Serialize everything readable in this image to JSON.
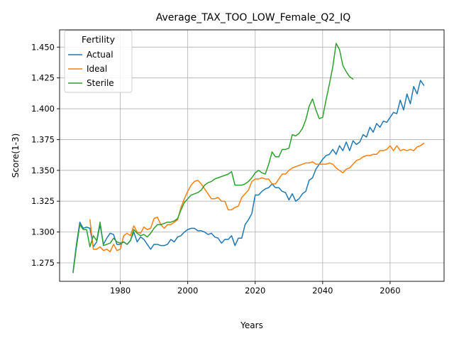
{
  "chart_data": {
    "type": "line",
    "title": "Average_TAX_TOO_LOW_Female_Q2_IQ",
    "xlabel": "Years",
    "ylabel": "Score(1-3)",
    "xlim": [
      1962,
      2076
    ],
    "ylim": [
      1.26,
      1.464
    ],
    "xticks": [
      1980,
      2000,
      2020,
      2040,
      2060
    ],
    "yticks": [
      1.275,
      1.3,
      1.325,
      1.35,
      1.375,
      1.4,
      1.425,
      1.45
    ],
    "ytick_labels": [
      "1.275",
      "1.300",
      "1.325",
      "1.350",
      "1.375",
      "1.400",
      "1.425",
      "1.450"
    ],
    "grid": true,
    "legend": {
      "title": "Fertility",
      "location": "upper left"
    },
    "series": [
      {
        "name": "Actual",
        "color": "#1f77b4",
        "x": [
          1966,
          1967,
          1968,
          1969,
          1970,
          1971,
          1972,
          1973,
          1974,
          1975,
          1976,
          1977,
          1978,
          1979,
          1980,
          1981,
          1982,
          1983,
          1984,
          1985,
          1986,
          1987,
          1988,
          1989,
          1990,
          1991,
          1992,
          1993,
          1994,
          1995,
          1996,
          1997,
          1998,
          1999,
          2000,
          2001,
          2002,
          2003,
          2004,
          2005,
          2006,
          2007,
          2008,
          2009,
          2010,
          2011,
          2012,
          2013,
          2014,
          2015,
          2016,
          2017,
          2018,
          2019,
          2020,
          2021,
          2022,
          2023,
          2024,
          2025,
          2026,
          2027,
          2028,
          2029,
          2030,
          2031,
          2032,
          2033,
          2034,
          2035,
          2036,
          2037,
          2038,
          2039,
          2040,
          2041,
          2042,
          2043,
          2044,
          2045,
          2046,
          2047,
          2048,
          2049,
          2050,
          2051,
          2052,
          2053,
          2054,
          2055,
          2056,
          2057,
          2058,
          2059,
          2060,
          2061,
          2062,
          2063,
          2064,
          2065,
          2066,
          2067,
          2068,
          2069,
          2070
        ],
        "values": [
          1.268,
          1.29,
          1.308,
          1.303,
          1.304,
          1.303,
          1.288,
          1.292,
          1.306,
          1.29,
          1.295,
          1.299,
          1.298,
          1.29,
          1.29,
          1.292,
          1.29,
          1.293,
          1.3,
          1.292,
          1.296,
          1.294,
          1.29,
          1.286,
          1.29,
          1.29,
          1.289,
          1.289,
          1.29,
          1.294,
          1.292,
          1.296,
          1.297,
          1.3,
          1.302,
          1.303,
          1.303,
          1.301,
          1.301,
          1.3,
          1.298,
          1.299,
          1.296,
          1.295,
          1.291,
          1.294,
          1.294,
          1.297,
          1.289,
          1.295,
          1.295,
          1.306,
          1.31,
          1.315,
          1.33,
          1.33,
          1.333,
          1.335,
          1.336,
          1.339,
          1.336,
          1.336,
          1.333,
          1.332,
          1.326,
          1.331,
          1.325,
          1.327,
          1.331,
          1.333,
          1.342,
          1.344,
          1.351,
          1.355,
          1.359,
          1.362,
          1.363,
          1.367,
          1.363,
          1.37,
          1.366,
          1.373,
          1.366,
          1.374,
          1.371,
          1.373,
          1.379,
          1.377,
          1.385,
          1.381,
          1.388,
          1.385,
          1.39,
          1.389,
          1.393,
          1.397,
          1.396,
          1.407,
          1.399,
          1.412,
          1.404,
          1.418,
          1.412,
          1.423,
          1.419
        ]
      },
      {
        "name": "Ideal",
        "color": "#ff7f0e",
        "x": [
          1971,
          1972,
          1973,
          1974,
          1975,
          1976,
          1977,
          1978,
          1979,
          1980,
          1981,
          1982,
          1983,
          1984,
          1985,
          1986,
          1987,
          1988,
          1989,
          1990,
          1991,
          1992,
          1993,
          1994,
          1995,
          1996,
          1997,
          1998,
          1999,
          2000,
          2001,
          2002,
          2003,
          2004,
          2005,
          2006,
          2007,
          2008,
          2009,
          2010,
          2011,
          2012,
          2013,
          2014,
          2015,
          2016,
          2017,
          2018,
          2019,
          2020,
          2021,
          2022,
          2023,
          2024,
          2025,
          2026,
          2027,
          2028,
          2029,
          2030,
          2031,
          2032,
          2033,
          2034,
          2035,
          2036,
          2037,
          2038,
          2039,
          2040,
          2041,
          2042,
          2043,
          2044,
          2045,
          2046,
          2047,
          2048,
          2049,
          2050,
          2051,
          2052,
          2053,
          2054,
          2055,
          2056,
          2057,
          2058,
          2059,
          2060,
          2061,
          2062,
          2063,
          2064,
          2065,
          2066,
          2067,
          2068,
          2069,
          2070
        ],
        "values": [
          1.31,
          1.286,
          1.286,
          1.288,
          1.285,
          1.286,
          1.284,
          1.29,
          1.285,
          1.286,
          1.297,
          1.299,
          1.297,
          1.305,
          1.3,
          1.299,
          1.304,
          1.302,
          1.303,
          1.311,
          1.312,
          1.306,
          1.303,
          1.306,
          1.306,
          1.308,
          1.31,
          1.32,
          1.327,
          1.333,
          1.338,
          1.341,
          1.342,
          1.339,
          1.335,
          1.331,
          1.327,
          1.327,
          1.328,
          1.325,
          1.325,
          1.318,
          1.318,
          1.32,
          1.321,
          1.328,
          1.331,
          1.334,
          1.341,
          1.343,
          1.343,
          1.344,
          1.343,
          1.343,
          1.339,
          1.339,
          1.343,
          1.347,
          1.347,
          1.35,
          1.352,
          1.353,
          1.354,
          1.355,
          1.356,
          1.356,
          1.357,
          1.355,
          1.355,
          1.355,
          1.355,
          1.356,
          1.355,
          1.352,
          1.35,
          1.348,
          1.351,
          1.352,
          1.355,
          1.358,
          1.359,
          1.361,
          1.362,
          1.362,
          1.363,
          1.363,
          1.366,
          1.366,
          1.367,
          1.37,
          1.366,
          1.37,
          1.366,
          1.367,
          1.366,
          1.367,
          1.366,
          1.369,
          1.37,
          1.372
        ]
      },
      {
        "name": "Sterile",
        "color": "#2ca02c",
        "x": [
          1966,
          1967,
          1968,
          1969,
          1970,
          1971,
          1972,
          1973,
          1974,
          1975,
          1976,
          1977,
          1978,
          1979,
          1980,
          1981,
          1982,
          1983,
          1984,
          1985,
          1986,
          1987,
          1988,
          1989,
          1990,
          1991,
          1992,
          1993,
          1994,
          1995,
          1996,
          1997,
          1998,
          1999,
          2000,
          2001,
          2002,
          2003,
          2004,
          2005,
          2006,
          2007,
          2008,
          2009,
          2010,
          2011,
          2012,
          2013,
          2014,
          2015,
          2016,
          2017,
          2018,
          2019,
          2020,
          2021,
          2022,
          2023,
          2024,
          2025,
          2026,
          2027,
          2028,
          2029,
          2030,
          2031,
          2032,
          2033,
          2034,
          2035,
          2036,
          2037,
          2038,
          2039,
          2040,
          2041,
          2042,
          2043,
          2044,
          2045,
          2046,
          2047,
          2048,
          2049
        ],
        "values": [
          1.267,
          1.288,
          1.306,
          1.302,
          1.302,
          1.288,
          1.297,
          1.293,
          1.308,
          1.289,
          1.29,
          1.291,
          1.295,
          1.292,
          1.291,
          1.292,
          1.29,
          1.293,
          1.302,
          1.299,
          1.297,
          1.298,
          1.296,
          1.299,
          1.303,
          1.306,
          1.306,
          1.307,
          1.308,
          1.308,
          1.309,
          1.311,
          1.318,
          1.324,
          1.327,
          1.33,
          1.331,
          1.332,
          1.334,
          1.338,
          1.34,
          1.341,
          1.343,
          1.344,
          1.345,
          1.346,
          1.347,
          1.349,
          1.338,
          1.338,
          1.338,
          1.339,
          1.341,
          1.344,
          1.348,
          1.35,
          1.348,
          1.347,
          1.355,
          1.365,
          1.361,
          1.361,
          1.367,
          1.367,
          1.368,
          1.379,
          1.378,
          1.38,
          1.384,
          1.391,
          1.402,
          1.408,
          1.399,
          1.392,
          1.393,
          1.407,
          1.42,
          1.434,
          1.453,
          1.448,
          1.435,
          1.43,
          1.426,
          1.424
        ]
      }
    ]
  }
}
